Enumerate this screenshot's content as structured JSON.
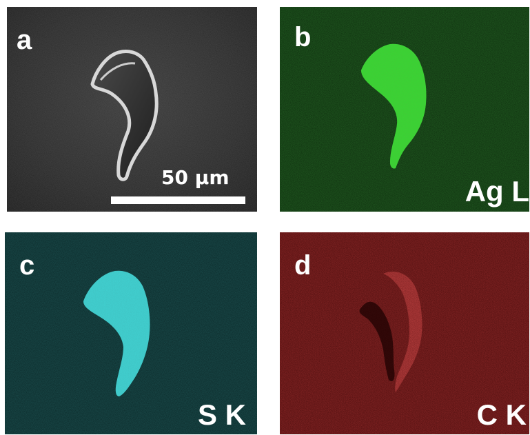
{
  "panels": [
    {
      "letter": "a",
      "kind": "SEM image"
    },
    {
      "letter": "b",
      "element": "Ag L",
      "color": "#22e022",
      "background": "#0a2a0a"
    },
    {
      "letter": "c",
      "element": "S K",
      "color": "#3fe0e0",
      "background": "#082828"
    },
    {
      "letter": "d",
      "element": "C K",
      "color": "#c81a1a",
      "background": "#3a0505"
    }
  ],
  "scale": {
    "label": "50 µm"
  }
}
